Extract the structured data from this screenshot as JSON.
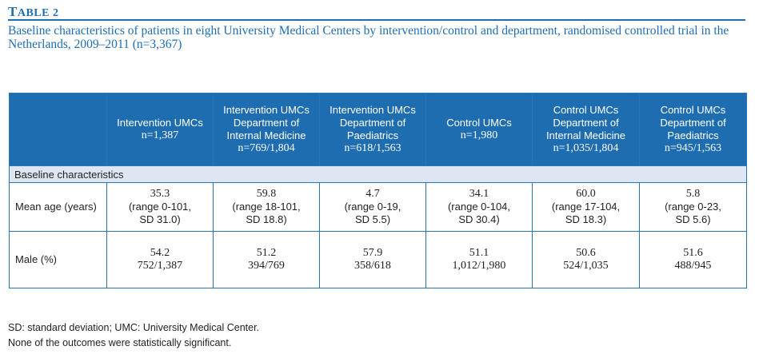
{
  "table_label": "Table 2",
  "caption": "Baseline characteristics of patients in eight University Medical Centers by intervention/control and department, randomised controlled trial in the Netherlands, 2009–2011 (n=3,367)",
  "columns": [
    {
      "title": "Intervention UMCs",
      "n": "n=1,387"
    },
    {
      "title": "Intervention UMCs Department of Internal Medicine",
      "n": "n=769/1,804"
    },
    {
      "title": "Intervention UMCs Department of Paediatrics",
      "n": "n=618/1,563"
    },
    {
      "title": "Control UMCs",
      "n": "n=1,980"
    },
    {
      "title": "Control UMCs Department of Internal Medicine",
      "n": "n=1,035/1,804"
    },
    {
      "title": "Control UMCs Department of Paediatrics",
      "n": "n=945/1,563"
    }
  ],
  "section_label": "Baseline characteristics",
  "rows": {
    "age": {
      "label": "Mean age (years)",
      "cells": [
        {
          "value": "35.3",
          "range": "(range 0-101,",
          "sd": "SD 31.0)"
        },
        {
          "value": "59.8",
          "range": "(range 18-101,",
          "sd": "SD 18.8)"
        },
        {
          "value": "4.7",
          "range": "(range 0-19,",
          "sd": "SD 5.5)"
        },
        {
          "value": "34.1",
          "range": "(range 0-104,",
          "sd": "SD 30.4)"
        },
        {
          "value": "60.0",
          "range": "(range 17-104,",
          "sd": "SD 18.3)"
        },
        {
          "value": "5.8",
          "range": "(range 0-23,",
          "sd": "SD 5.6)"
        }
      ]
    },
    "male": {
      "label": "Male (%)",
      "cells": [
        {
          "pct": "54.2",
          "frac": "752/1,387"
        },
        {
          "pct": "51.2",
          "frac": "394/769"
        },
        {
          "pct": "57.9",
          "frac": "358/618"
        },
        {
          "pct": "51.1",
          "frac": "1,012/1,980"
        },
        {
          "pct": "50.6",
          "frac": "524/1,035"
        },
        {
          "pct": "51.6",
          "frac": "488/945"
        }
      ]
    }
  },
  "footnotes": [
    "SD: standard deviation; UMC: University Medical Center.",
    "None of the outcomes were statistically significant."
  ],
  "colors": {
    "accent": "#1f6db1",
    "section_bg": "#dde6f2"
  }
}
